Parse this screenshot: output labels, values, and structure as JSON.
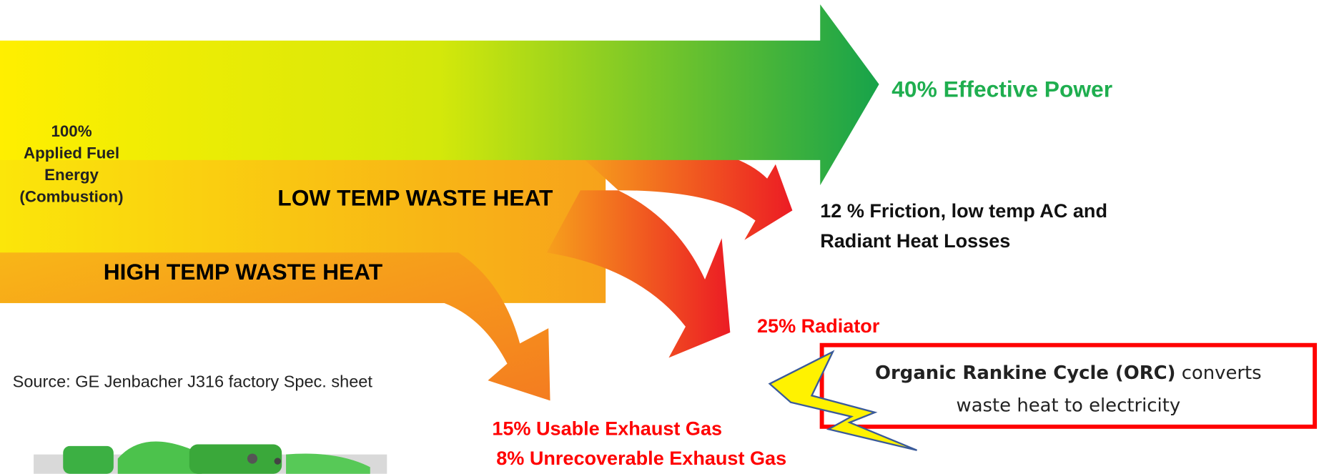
{
  "input": {
    "lines": [
      "100%",
      "Applied Fuel",
      "Energy",
      "(Combustion)"
    ]
  },
  "flows": {
    "low_temp": "LOW TEMP WASTE HEAT",
    "high_temp": "HIGH TEMP WASTE HEAT"
  },
  "outputs": {
    "effective_power": "40% Effective Power",
    "friction": [
      "12 % Friction, low temp AC and",
      "Radiant Heat Losses"
    ],
    "radiator": "25% Radiator",
    "usable_exhaust": "15% Usable Exhaust Gas",
    "unrecoverable_exhaust": "8% Unrecoverable Exhaust Gas"
  },
  "source_note": "Source: GE Jenbacher J316 factory Spec. sheet",
  "callout": {
    "bold": "Organic Rankine Cycle (ORC)",
    "text": " converts",
    "line2": "waste heat to electricity"
  }
}
